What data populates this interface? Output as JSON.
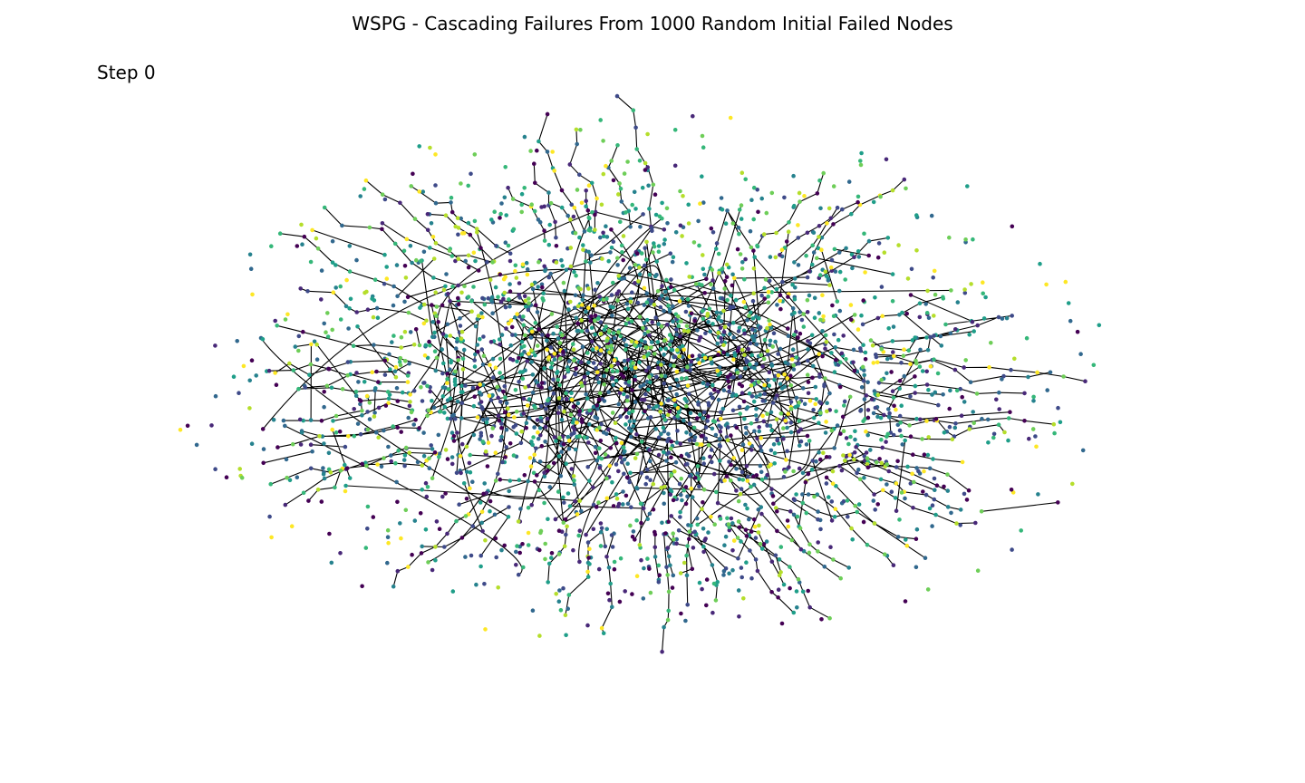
{
  "figure": {
    "title": "WSPG - Cascading Failures From 1000 Random Initial Failed Nodes",
    "step_label": "Step 0"
  },
  "graph": {
    "node_palette": [
      "#440154",
      "#482878",
      "#3e4a89",
      "#31688e",
      "#26828e",
      "#1f9e89",
      "#35b779",
      "#6ece58",
      "#b5de2b",
      "#fde725"
    ],
    "edge_color": "#000000",
    "background": "#ffffff"
  }
}
